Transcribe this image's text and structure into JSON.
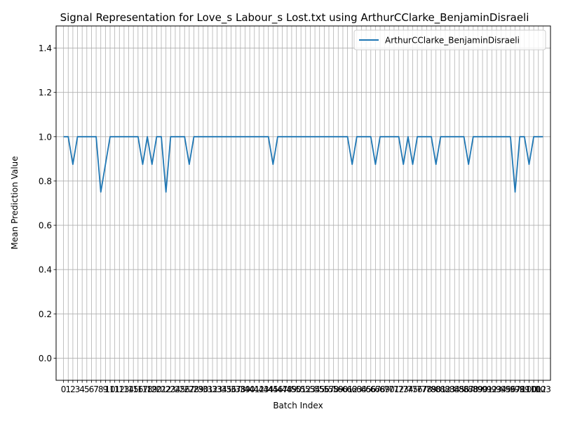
{
  "chart_data": {
    "type": "line",
    "title": "Signal Representation for Love_s Labour_s Lost.txt using ArthurCClarke_BenjaminDisraeli",
    "xlabel": "Batch Index",
    "ylabel": "Mean Prediction Value",
    "xlim": [
      -1.6,
      104.6
    ],
    "ylim": [
      -0.1,
      1.5
    ],
    "grid": true,
    "legend_position": "top-right",
    "line_color": "#1f77b4",
    "y_ticks": [
      "0.0",
      "0.2",
      "0.4",
      "0.6",
      "0.8",
      "1.0",
      "1.2",
      "1.4"
    ],
    "x_ticks": [
      "0",
      "1",
      "2",
      "3",
      "4",
      "5",
      "6",
      "7",
      "8",
      "9",
      "10",
      "11",
      "12",
      "13",
      "14",
      "15",
      "16",
      "17",
      "18",
      "19",
      "20",
      "21",
      "22",
      "23",
      "24",
      "25",
      "26",
      "27",
      "28",
      "29",
      "30",
      "31",
      "32",
      "33",
      "34",
      "35",
      "36",
      "37",
      "38",
      "39",
      "40",
      "41",
      "42",
      "43",
      "44",
      "45",
      "46",
      "47",
      "48",
      "49",
      "50",
      "51",
      "52",
      "53",
      "54",
      "55",
      "56",
      "57",
      "58",
      "59",
      "60",
      "61",
      "62",
      "63",
      "64",
      "65",
      "66",
      "67",
      "68",
      "69",
      "70",
      "71",
      "72",
      "73",
      "74",
      "75",
      "76",
      "77",
      "78",
      "79",
      "80",
      "81",
      "82",
      "83",
      "84",
      "85",
      "86",
      "87",
      "88",
      "89",
      "90",
      "91",
      "92",
      "93",
      "94",
      "95",
      "96",
      "97",
      "98",
      "99",
      "100",
      "101",
      "102",
      "103"
    ],
    "series": [
      {
        "name": "ArthurCClarke_BenjaminDisraeli",
        "x": [
          0,
          1,
          2,
          3,
          4,
          5,
          6,
          7,
          8,
          9,
          10,
          11,
          12,
          13,
          14,
          15,
          16,
          17,
          18,
          19,
          20,
          21,
          22,
          23,
          24,
          25,
          26,
          27,
          28,
          29,
          30,
          31,
          32,
          33,
          34,
          35,
          36,
          37,
          38,
          39,
          40,
          41,
          42,
          43,
          44,
          45,
          46,
          47,
          48,
          49,
          50,
          51,
          52,
          53,
          54,
          55,
          56,
          57,
          58,
          59,
          60,
          61,
          62,
          63,
          64,
          65,
          66,
          67,
          68,
          69,
          70,
          71,
          72,
          73,
          74,
          75,
          76,
          77,
          78,
          79,
          80,
          81,
          82,
          83,
          84,
          85,
          86,
          87,
          88,
          89,
          90,
          91,
          92,
          93,
          94,
          95,
          96,
          97,
          98,
          99,
          100,
          101,
          102,
          103
        ],
        "values": [
          1,
          1,
          0.875,
          1,
          1,
          1,
          1,
          1,
          0.75,
          0.875,
          1,
          1,
          1,
          1,
          1,
          1,
          1,
          0.875,
          1,
          0.875,
          1,
          1,
          0.75,
          1,
          1,
          1,
          1,
          0.875,
          1,
          1,
          1,
          1,
          1,
          1,
          1,
          1,
          1,
          1,
          1,
          1,
          1,
          1,
          1,
          1,
          1,
          0.875,
          1,
          1,
          1,
          1,
          1,
          1,
          1,
          1,
          1,
          1,
          1,
          1,
          1,
          1,
          1,
          1,
          0.875,
          1,
          1,
          1,
          1,
          0.875,
          1,
          1,
          1,
          1,
          1,
          0.875,
          1,
          0.875,
          1,
          1,
          1,
          1,
          0.875,
          1,
          1,
          1,
          1,
          1,
          1,
          0.875,
          1,
          1,
          1,
          1,
          1,
          1,
          1,
          1,
          1,
          0.75,
          1,
          1,
          0.875,
          1,
          1,
          1
        ]
      }
    ]
  }
}
